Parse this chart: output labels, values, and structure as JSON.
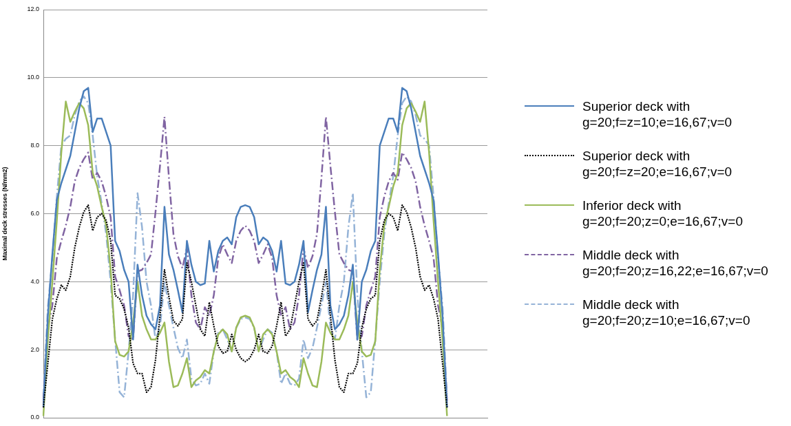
{
  "chart_data": {
    "type": "line",
    "ylabel": "Maximal deck stresses (N/mm2)",
    "categories": [
      null,
      null,
      null,
      null,
      null,
      null,
      null,
      null,
      null,
      null,
      null,
      null,
      null,
      null,
      null,
      null,
      null,
      null,
      null,
      null,
      null,
      null,
      null,
      null,
      null,
      null,
      null,
      null,
      null,
      null,
      null,
      null,
      null,
      null,
      null,
      null,
      null,
      null,
      null,
      null,
      null,
      null,
      null,
      null,
      null,
      null,
      null,
      null,
      null,
      null,
      null,
      null,
      null,
      null,
      null,
      null,
      null,
      null,
      null,
      null,
      null,
      null,
      null,
      null,
      null,
      null,
      null,
      null,
      null,
      null,
      null,
      null,
      null,
      null,
      null,
      null,
      null,
      null,
      null,
      null,
      null,
      null,
      null,
      null,
      null,
      null,
      null,
      null,
      null,
      null,
      null,
      null,
      null,
      null,
      null,
      null,
      null,
      null,
      null,
      null
    ],
    "ylim": [
      0,
      12
    ],
    "yticks": [
      {
        "value": 0,
        "label": "0.0"
      },
      {
        "value": 2,
        "label": "2.0"
      },
      {
        "value": 4,
        "label": "4.0"
      },
      {
        "value": 6,
        "label": "6.0"
      },
      {
        "value": 8,
        "label": "8.0"
      },
      {
        "value": 10,
        "label": "10.0"
      },
      {
        "value": 12,
        "label": "12.0"
      }
    ],
    "grid": "y",
    "legend": "right",
    "tick_labels": "y",
    "marker": "none",
    "series": [
      {
        "name": "Superior deck with g=20;f=z=10;e=16,67;v=0",
        "color": "#4a7ebb",
        "line_style": "solid",
        "values": [
          0.3,
          3.0,
          4.8,
          6.4,
          6.9,
          7.3,
          7.7,
          8.4,
          9.1,
          9.6,
          9.7,
          8.4,
          8.8,
          8.8,
          8.4,
          8.0,
          5.2,
          4.9,
          4.35,
          4.0,
          2.3,
          4.5,
          3.6,
          3.0,
          2.75,
          2.6,
          3.3,
          6.2,
          4.8,
          4.35,
          3.75,
          3.1,
          5.2,
          4.5,
          4.0,
          3.9,
          3.95,
          5.2,
          4.3,
          4.9,
          5.2,
          5.3,
          5.1,
          5.9,
          6.2,
          6.25,
          6.2,
          5.9,
          5.1,
          5.3,
          5.2,
          4.9,
          4.3,
          5.2,
          3.95,
          3.9,
          4.0,
          4.5,
          5.2,
          3.1,
          3.75,
          4.35,
          4.8,
          6.2,
          3.3,
          2.6,
          2.75,
          3.0,
          3.6,
          4.5,
          2.3,
          4.0,
          4.35,
          4.9,
          5.2,
          8.0,
          8.4,
          8.8,
          8.8,
          8.4,
          9.7,
          9.6,
          9.1,
          8.4,
          7.7,
          7.3,
          6.9,
          6.4,
          4.8,
          3.0,
          0.3,
          null,
          null,
          null,
          null,
          null,
          null,
          null,
          null,
          null
        ]
      },
      {
        "name": "Superior deck with g=20;f=z=20;e=16,67;v=0",
        "color": "#000000",
        "line_style": "dotted",
        "values": [
          0.3,
          1.6,
          2.9,
          3.5,
          3.9,
          3.75,
          4.15,
          5.0,
          5.6,
          6.05,
          6.25,
          5.5,
          5.9,
          6.0,
          5.8,
          5.2,
          3.6,
          3.5,
          3.2,
          2.65,
          1.6,
          1.3,
          1.3,
          0.75,
          0.9,
          1.7,
          3.0,
          4.35,
          3.55,
          2.85,
          2.7,
          2.9,
          4.55,
          4.0,
          3.3,
          2.6,
          2.4,
          3.4,
          2.7,
          2.1,
          1.9,
          1.95,
          2.45,
          2.0,
          1.75,
          1.65,
          1.75,
          2.0,
          2.45,
          1.95,
          1.9,
          2.1,
          2.7,
          3.4,
          2.4,
          2.6,
          3.3,
          4.0,
          4.55,
          2.9,
          2.7,
          2.85,
          3.55,
          4.35,
          3.0,
          1.7,
          0.9,
          0.75,
          1.3,
          1.3,
          1.6,
          2.65,
          3.2,
          3.5,
          3.6,
          5.2,
          5.8,
          6.0,
          5.9,
          5.5,
          6.25,
          6.05,
          5.6,
          5.0,
          4.15,
          3.75,
          3.9,
          3.5,
          2.9,
          1.6,
          0.3,
          null,
          null,
          null,
          null,
          null,
          null,
          null,
          null,
          null
        ]
      },
      {
        "name": "Inferior deck with g=20;f=20;z=0;e=16,67;v=0",
        "color": "#9bbb59",
        "line_style": "solid",
        "values": [
          0.05,
          2.3,
          4.0,
          5.8,
          7.8,
          9.3,
          8.7,
          9.0,
          9.25,
          9.1,
          8.6,
          7.2,
          6.8,
          6.2,
          5.65,
          4.35,
          2.25,
          1.85,
          1.8,
          1.95,
          2.8,
          4.0,
          3.0,
          2.6,
          2.3,
          2.3,
          2.5,
          2.8,
          1.65,
          0.9,
          0.95,
          1.3,
          1.75,
          0.9,
          1.1,
          1.2,
          1.4,
          1.3,
          1.95,
          2.45,
          2.6,
          2.45,
          1.95,
          2.65,
          2.95,
          3.0,
          2.95,
          2.65,
          1.95,
          2.45,
          2.6,
          2.45,
          1.95,
          1.3,
          1.4,
          1.2,
          1.1,
          0.9,
          1.75,
          1.3,
          0.95,
          0.9,
          1.65,
          2.8,
          2.5,
          2.3,
          2.3,
          2.6,
          3.0,
          4.0,
          2.8,
          1.95,
          1.8,
          1.85,
          2.25,
          4.35,
          5.65,
          6.2,
          6.8,
          7.2,
          8.6,
          9.1,
          9.25,
          9.0,
          8.7,
          9.3,
          7.8,
          5.8,
          4.0,
          2.3,
          0.05,
          null,
          null,
          null,
          null,
          null,
          null,
          null,
          null,
          null
        ]
      },
      {
        "name": "Middle deck with g=20;f=20;z=16,22;e=16,67;v=0",
        "color": "#8064a2",
        "line_style": "dashed",
        "values": [
          0.5,
          2.65,
          3.3,
          4.7,
          5.2,
          5.65,
          6.2,
          6.95,
          7.35,
          7.6,
          7.8,
          7.0,
          7.2,
          6.95,
          6.5,
          5.9,
          4.15,
          3.75,
          3.3,
          2.4,
          2.3,
          4.3,
          4.35,
          4.55,
          4.8,
          6.05,
          7.4,
          8.85,
          7.05,
          5.4,
          4.75,
          4.4,
          5.0,
          3.6,
          2.8,
          2.6,
          3.25,
          3.0,
          3.6,
          4.7,
          5.1,
          4.8,
          4.55,
          5.2,
          5.5,
          5.65,
          5.5,
          5.2,
          4.55,
          4.8,
          5.1,
          4.7,
          3.6,
          3.0,
          3.25,
          2.6,
          2.8,
          3.6,
          5.0,
          4.4,
          4.75,
          5.4,
          7.05,
          8.85,
          7.4,
          6.05,
          4.8,
          4.55,
          4.35,
          4.3,
          2.3,
          2.4,
          3.3,
          3.75,
          4.15,
          5.9,
          6.5,
          6.95,
          7.2,
          7.0,
          7.8,
          7.6,
          7.35,
          6.95,
          6.2,
          5.65,
          5.2,
          4.7,
          3.3,
          2.65,
          0.5,
          null,
          null,
          null,
          null,
          null,
          null,
          null,
          null,
          null
        ]
      },
      {
        "name": "Middle deck with g=20;f=20;z=10;e=16,67;v=0",
        "color": "#95b3d7",
        "line_style": "dashed",
        "values": [
          0.6,
          3.25,
          4.7,
          6.5,
          8.0,
          8.2,
          8.3,
          8.9,
          9.3,
          9.45,
          9.25,
          8.3,
          7.1,
          6.3,
          5.4,
          4.0,
          2.3,
          0.75,
          0.6,
          1.95,
          3.6,
          6.6,
          5.6,
          4.0,
          3.3,
          2.3,
          2.65,
          4.0,
          3.3,
          2.65,
          2.05,
          1.75,
          2.3,
          1.15,
          0.95,
          1.0,
          1.3,
          1.0,
          1.95,
          2.5,
          2.6,
          2.3,
          1.95,
          2.65,
          2.9,
          2.95,
          2.9,
          2.65,
          1.95,
          2.3,
          2.6,
          2.5,
          1.95,
          1.0,
          1.3,
          1.0,
          0.95,
          1.15,
          2.3,
          1.75,
          2.05,
          2.65,
          3.3,
          4.0,
          2.65,
          2.3,
          3.3,
          4.0,
          5.6,
          6.6,
          3.6,
          1.95,
          0.6,
          0.75,
          2.3,
          4.0,
          5.4,
          6.3,
          7.1,
          8.3,
          9.25,
          9.45,
          9.3,
          8.9,
          8.3,
          8.2,
          8.0,
          6.5,
          4.7,
          3.25,
          0.6,
          null,
          null,
          null,
          null,
          null,
          null,
          null,
          null,
          null
        ]
      }
    ]
  }
}
